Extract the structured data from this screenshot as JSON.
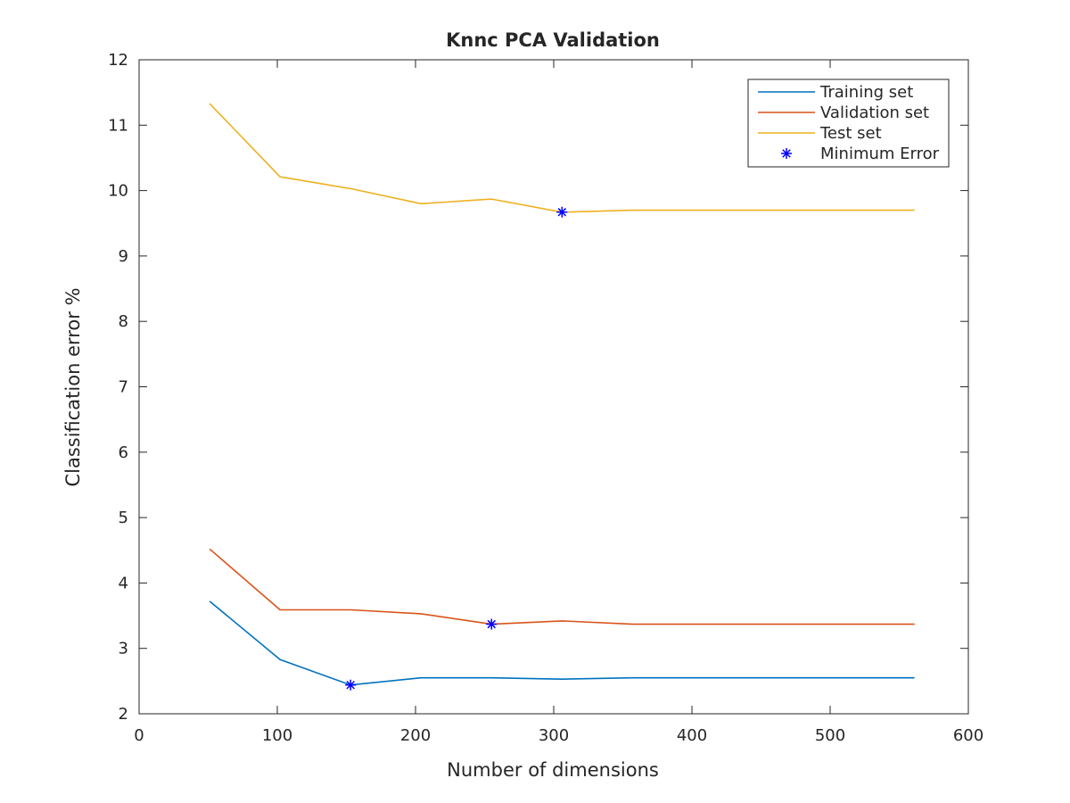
{
  "chart_data": {
    "type": "line",
    "title": "Knnc PCA Validation",
    "xlabel": "Number of dimensions",
    "ylabel": "Classification error %",
    "xlim": [
      0,
      600
    ],
    "ylim": [
      2,
      12
    ],
    "xticks": [
      0,
      100,
      200,
      300,
      400,
      500,
      600
    ],
    "yticks": [
      2,
      3,
      4,
      5,
      6,
      7,
      8,
      9,
      10,
      11,
      12
    ],
    "grid": false,
    "legend_position": "top-right",
    "x": [
      51,
      102,
      153,
      204,
      255,
      306,
      357,
      408,
      459,
      510,
      561
    ],
    "series": [
      {
        "name": "Training set",
        "color": "#0072BD",
        "values": [
          3.72,
          2.83,
          2.44,
          2.55,
          2.55,
          2.53,
          2.55,
          2.55,
          2.55,
          2.55,
          2.55
        ]
      },
      {
        "name": "Validation set",
        "color": "#D95319",
        "values": [
          4.52,
          3.59,
          3.59,
          3.53,
          3.37,
          3.42,
          3.37,
          3.37,
          3.37,
          3.37,
          3.37
        ]
      },
      {
        "name": "Test set",
        "color": "#EDB120",
        "values": [
          11.33,
          10.21,
          10.03,
          9.8,
          9.87,
          9.67,
          9.7,
          9.7,
          9.7,
          9.7,
          9.7
        ]
      }
    ],
    "minimum_error": {
      "name": "Minimum Error",
      "color": "#0000FF",
      "marker": "asterisk",
      "points": [
        {
          "x": 153,
          "y": 2.44
        },
        {
          "x": 255,
          "y": 3.37
        },
        {
          "x": 306,
          "y": 9.67
        }
      ]
    }
  }
}
